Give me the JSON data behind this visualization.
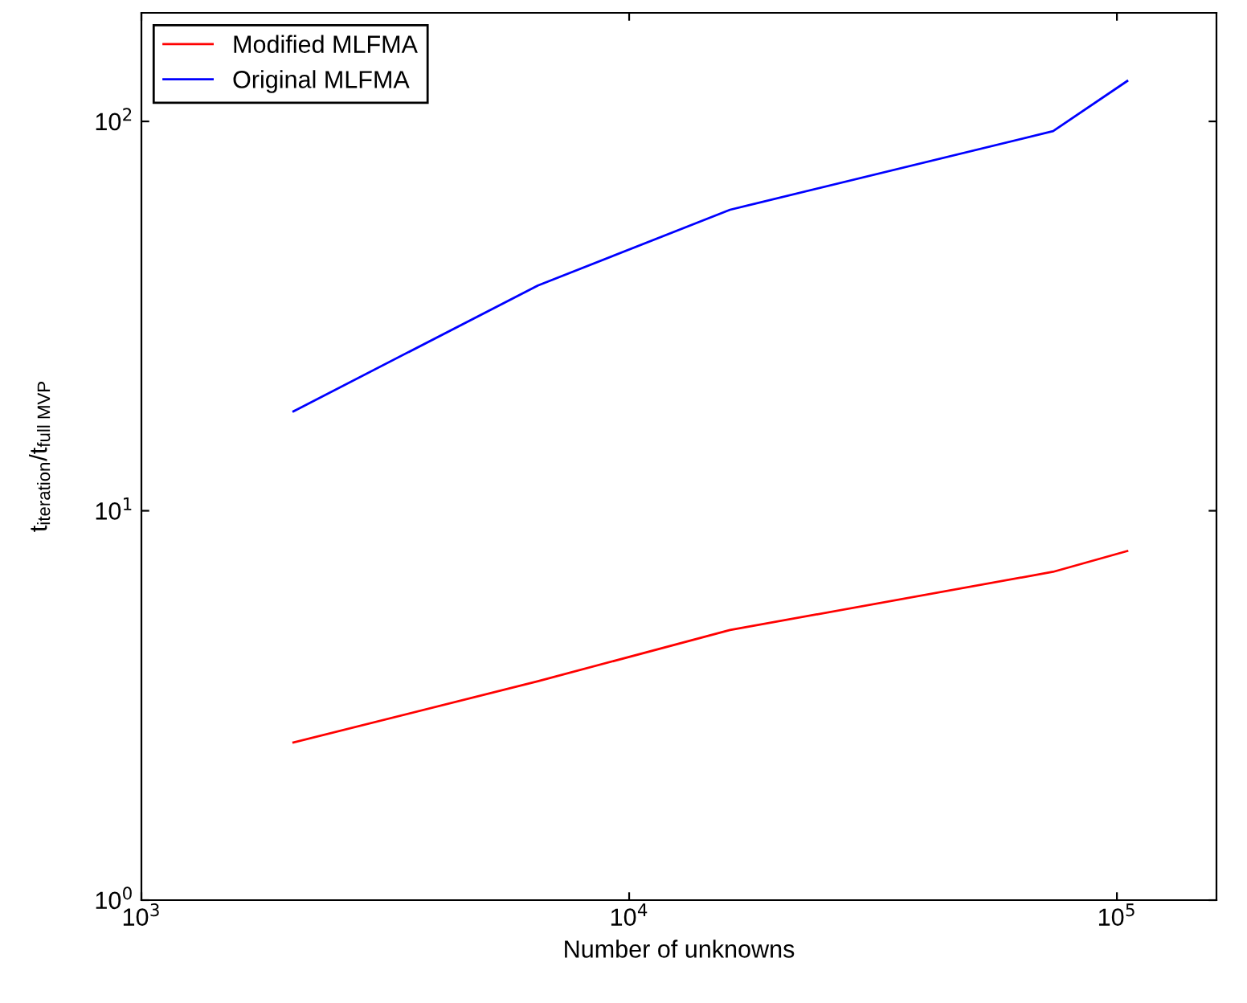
{
  "chart_data": {
    "type": "line",
    "xlabel": "Number of unknowns",
    "ylabel": "t$_{iteration}$/t$_{full MVP}$",
    "log": "xy",
    "xlim": [
      1000,
      160000
    ],
    "ylim": [
      1,
      190
    ],
    "xticks": [
      {
        "value": 1000,
        "label": "10$^{3}$"
      },
      {
        "value": 10000,
        "label": "10$^{4}$"
      },
      {
        "value": 100000,
        "label": "10$^{5}$"
      }
    ],
    "yticks": [
      {
        "value": 1,
        "label": "10$^{0}$"
      },
      {
        "value": 10,
        "label": "10$^{1}$"
      },
      {
        "value": 100,
        "label": "10$^{2}$"
      }
    ],
    "grid": false,
    "legend": "top left",
    "marker": "none",
    "line_style": "solid",
    "series": [
      {
        "name": "Modified MLFMA",
        "color": "#ff0000",
        "x": [
          2050,
          6500,
          16100,
          74000,
          105000
        ],
        "values": [
          2.54,
          3.65,
          4.94,
          6.97,
          7.88
        ]
      },
      {
        "name": "Original MLFMA",
        "color": "#0000ff",
        "x": [
          2050,
          6500,
          16100,
          74000,
          105000
        ],
        "values": [
          18.0,
          37.9,
          59.3,
          94.4,
          127
        ]
      }
    ]
  }
}
